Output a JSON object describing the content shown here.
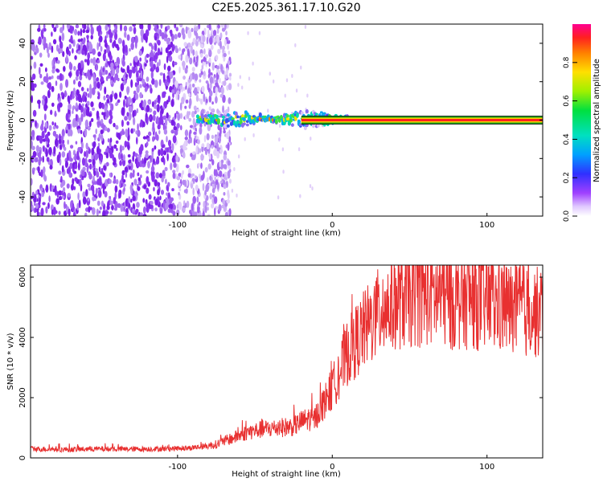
{
  "title": "C2E5.2025.361.17.10.G20",
  "colors": {
    "red": "#e83030",
    "purple": "#7a1fe6",
    "axis": "#000000"
  },
  "chart_data": [
    {
      "type": "heatmap",
      "name": "spectrogram",
      "xlabel": "Height of straight line (km)",
      "ylabel": "Frequency (Hz)",
      "xlim": [
        -195,
        136
      ],
      "ylim": [
        -50,
        50
      ],
      "x_ticks": [
        -100,
        0,
        100
      ],
      "y_ticks": [
        -40,
        -20,
        0,
        20,
        40
      ],
      "noise_region_x": [
        -195,
        -70
      ],
      "signal_start_x": -87,
      "tone_frequency_hz": 0,
      "colorbar": {
        "label": "Normalized spectral amplitude",
        "range": [
          0,
          1
        ],
        "ticks": [
          "0.0",
          "0.2",
          "0.4",
          "0.6",
          "0.8"
        ]
      }
    },
    {
      "type": "line",
      "name": "snr",
      "xlabel": "Height of straight line (km)",
      "ylabel": "SNR (10 * v/v)",
      "xlim": [
        -195,
        136
      ],
      "ylim": [
        0,
        6400
      ],
      "x_ticks": [
        -100,
        0,
        100
      ],
      "y_ticks": [
        0,
        2000,
        4000,
        6000
      ],
      "series": [
        {
          "name": "SNR",
          "x": [
            -195,
            -170,
            -150,
            -130,
            -110,
            -95,
            -85,
            -75,
            -70,
            -62,
            -55,
            -45,
            -35,
            -25,
            -20,
            -15,
            -12,
            -8,
            0,
            5,
            10,
            20,
            30,
            40,
            50,
            60,
            70,
            80,
            90,
            100,
            110,
            120,
            136
          ],
          "values": [
            300,
            280,
            300,
            290,
            300,
            320,
            360,
            450,
            550,
            700,
            850,
            950,
            1000,
            1050,
            1200,
            1300,
            1250,
            1600,
            2300,
            2900,
            3500,
            4200,
            4800,
            5200,
            5300,
            5400,
            5350,
            5200,
            5300,
            5100,
            5000,
            4900,
            4800
          ]
        }
      ]
    }
  ]
}
